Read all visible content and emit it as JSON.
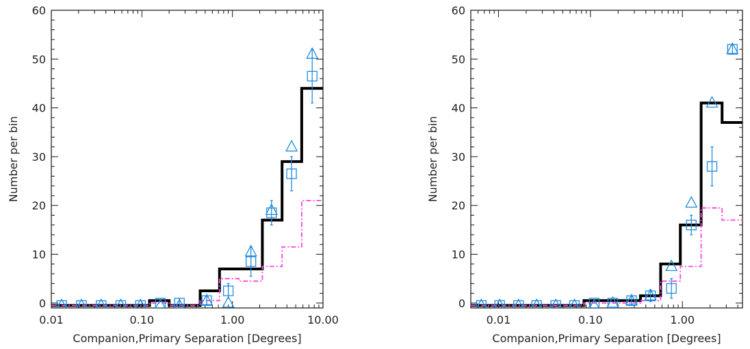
{
  "chart_data": [
    {
      "type": "line",
      "subtype": "step-histogram-with-markers",
      "xscale": "log",
      "xlim": [
        0.01,
        10.0
      ],
      "ylim": [
        -1,
        60
      ],
      "xlabel": "Companion,Primary Separation [Degrees]",
      "ylabel": "Number per bin",
      "xticks": [
        0.01,
        0.1,
        1.0,
        10.0
      ],
      "xtick_labels": [
        "0.01",
        "0.10",
        "1.00",
        "10.00"
      ],
      "yticks": [
        0,
        10,
        20,
        30,
        40,
        50,
        60
      ],
      "ytick_labels": [
        "0",
        "10",
        "20",
        "30",
        "40",
        "50",
        "60"
      ],
      "grid": false,
      "series": [
        {
          "style": "step-solid",
          "color": "#000000",
          "bin_edges": [
            0.01,
            0.0165,
            0.0272,
            0.0448,
            0.0738,
            0.1215,
            0.2,
            0.33,
            0.44,
            0.72,
            1.18,
            2.14,
            3.53,
            5.82,
            10.0
          ],
          "values": [
            -0.5,
            -0.5,
            -0.5,
            -0.5,
            -0.5,
            0.5,
            -0.5,
            -0.5,
            2.5,
            7,
            7,
            17,
            29,
            44
          ]
        },
        {
          "style": "step-dashdot",
          "color": "#ff44dd",
          "bin_edges": [
            0.01,
            0.0165,
            0.0272,
            0.0448,
            0.0738,
            0.1215,
            0.2,
            0.33,
            0.44,
            0.72,
            1.18,
            2.14,
            3.53,
            5.82,
            10.0
          ],
          "values": [
            -0.5,
            -0.5,
            -0.5,
            -0.5,
            -0.5,
            0,
            -0.5,
            -0.5,
            0.5,
            5,
            4.5,
            7.5,
            11.5,
            21
          ]
        },
        {
          "style": "markers-square-errorbars",
          "color": "#1f8be0",
          "x": [
            0.013,
            0.0215,
            0.0355,
            0.0585,
            0.0965,
            0.16,
            0.26,
            0.52,
            0.9,
            1.6,
            2.7,
            4.5,
            7.6
          ],
          "values": [
            -0.5,
            -0.5,
            -0.5,
            -0.5,
            -0.5,
            0,
            0,
            0.5,
            2.5,
            8.5,
            18.5,
            26.5,
            46.5
          ],
          "errors": [
            0,
            0,
            0,
            0,
            0,
            0,
            1.0,
            0.8,
            1.5,
            3.0,
            2.5,
            3.5,
            5.5
          ]
        },
        {
          "style": "markers-triangle",
          "color": "#1f8be0",
          "x": [
            0.013,
            0.0215,
            0.0355,
            0.0585,
            0.0965,
            0.16,
            0.26,
            0.52,
            0.9,
            1.6,
            2.7,
            4.5,
            7.6
          ],
          "values": [
            -0.5,
            -0.5,
            -0.5,
            -0.5,
            -0.5,
            -0.5,
            -0.5,
            0.5,
            0,
            10.5,
            19,
            32,
            51
          ]
        }
      ]
    },
    {
      "type": "line",
      "subtype": "step-histogram-with-markers",
      "xscale": "log",
      "xlim": [
        0.005,
        4.5
      ],
      "ylim": [
        -1,
        60
      ],
      "xlabel": "Companion,Primary Separation [Degrees]",
      "ylabel": "Number per bin",
      "xticks": [
        0.01,
        0.1,
        1.0
      ],
      "xtick_labels": [
        "0.01",
        "0.10",
        "1.00"
      ],
      "yticks": [
        0,
        10,
        20,
        30,
        40,
        50,
        60
      ],
      "ytick_labels": [
        "0",
        "10",
        "20",
        "30",
        "40",
        "50",
        "60"
      ],
      "grid": false,
      "series": [
        {
          "style": "step-solid",
          "color": "#000000",
          "bin_edges": [
            0.005,
            0.008,
            0.013,
            0.0205,
            0.033,
            0.053,
            0.085,
            0.135,
            0.22,
            0.35,
            0.58,
            0.95,
            1.6,
            2.7,
            4.5
          ],
          "values": [
            -0.5,
            -0.5,
            -0.5,
            -0.5,
            -0.5,
            -0.5,
            0.5,
            0.5,
            0.5,
            1.5,
            8,
            16,
            41,
            37
          ]
        },
        {
          "style": "step-dashdot",
          "color": "#ff44dd",
          "bin_edges": [
            0.005,
            0.008,
            0.013,
            0.0205,
            0.033,
            0.053,
            0.085,
            0.135,
            0.22,
            0.35,
            0.58,
            0.95,
            1.6,
            2.7,
            4.5
          ],
          "values": [
            -0.5,
            -0.5,
            -0.5,
            -0.5,
            -0.5,
            -0.5,
            0,
            0,
            0,
            0.5,
            4.5,
            7.5,
            19.5,
            17
          ]
        },
        {
          "style": "markers-square-errorbars",
          "color": "#1f8be0",
          "x": [
            0.0065,
            0.0103,
            0.0165,
            0.026,
            0.042,
            0.067,
            0.11,
            0.175,
            0.28,
            0.45,
            0.76,
            1.25,
            2.1,
            3.5
          ],
          "values": [
            -0.5,
            -0.5,
            -0.5,
            -0.5,
            -0.5,
            -0.5,
            0,
            0,
            0.5,
            1.5,
            3,
            16,
            28,
            52
          ],
          "errors": [
            0,
            0,
            0,
            0,
            0,
            0,
            0,
            0,
            0.8,
            1.2,
            2.0,
            2.0,
            4.0,
            1.0
          ]
        },
        {
          "style": "markers-triangle",
          "color": "#1f8be0",
          "x": [
            0.0065,
            0.0103,
            0.0165,
            0.026,
            0.042,
            0.067,
            0.11,
            0.175,
            0.28,
            0.45,
            0.76,
            1.25,
            2.1,
            3.5
          ],
          "values": [
            -0.5,
            -0.5,
            -0.5,
            -0.5,
            -0.5,
            -0.5,
            -0.5,
            0,
            0.5,
            1.5,
            7.5,
            20.5,
            41,
            52
          ]
        }
      ]
    }
  ]
}
